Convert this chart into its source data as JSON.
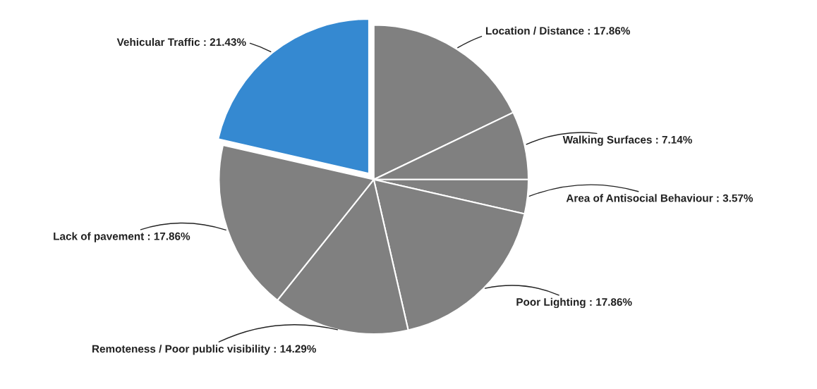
{
  "chart_data": {
    "type": "pie",
    "categories": [
      "Location / Distance",
      "Walking Surfaces",
      "Area of Antisocial Behaviour",
      "Poor Lighting",
      "Remoteness / Poor public visibility",
      "Lack of pavement",
      "Vehicular Traffic"
    ],
    "values": [
      17.86,
      7.14,
      3.57,
      17.86,
      14.29,
      17.86,
      21.43
    ],
    "value_labels": [
      "17.86%",
      "7.14%",
      "3.57%",
      "17.86%",
      "14.29%",
      "17.86%",
      "21.43%"
    ],
    "colors": [
      "#808080",
      "#808080",
      "#808080",
      "#808080",
      "#808080",
      "#808080",
      "#3589d1"
    ]
  }
}
